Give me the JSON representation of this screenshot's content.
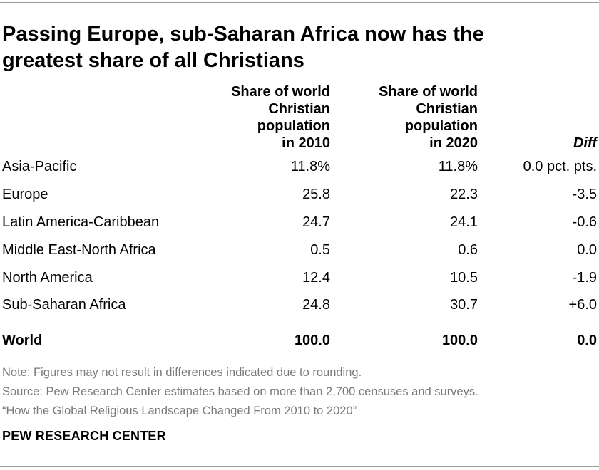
{
  "title_lines": [
    "Passing Europe, sub-Saharan Africa now has the",
    "greatest share of all Christians"
  ],
  "chart_data": {
    "type": "table",
    "columns": [
      {
        "header_lines": [
          "Share of world",
          "Christian",
          "population",
          "in 2010"
        ]
      },
      {
        "header_lines": [
          "Share of world",
          "Christian",
          "population",
          "in 2020"
        ]
      },
      {
        "header_lines": [
          "Diff"
        ]
      }
    ],
    "rows": [
      {
        "label": "Asia-Pacific",
        "v2010": "11.8%",
        "v2020": "11.8%",
        "diff": "0.0 pct. pts."
      },
      {
        "label": "Europe",
        "v2010": "25.8",
        "v2020": "22.3",
        "diff": "-3.5"
      },
      {
        "label": "Latin America-Caribbean",
        "v2010": "24.7",
        "v2020": "24.1",
        "diff": "-0.6"
      },
      {
        "label": "Middle East-North Africa",
        "v2010": "0.5",
        "v2020": "0.6",
        "diff": "0.0"
      },
      {
        "label": "North America",
        "v2010": "12.4",
        "v2020": "10.5",
        "diff": "-1.9"
      },
      {
        "label": "Sub-Saharan Africa",
        "v2010": "24.8",
        "v2020": "30.7",
        "diff": "+6.0"
      }
    ],
    "total": {
      "label": "World",
      "v2010": "100.0",
      "v2020": "100.0",
      "diff": "0.0"
    }
  },
  "notes": [
    "Note: Figures may not result in differences indicated due to rounding.",
    "Source: Pew Research Center estimates based on more than 2,700 censuses and surveys.",
    "“How the Global Religious Landscape Changed From 2010 to 2020”"
  ],
  "brand": "PEW RESEARCH CENTER"
}
